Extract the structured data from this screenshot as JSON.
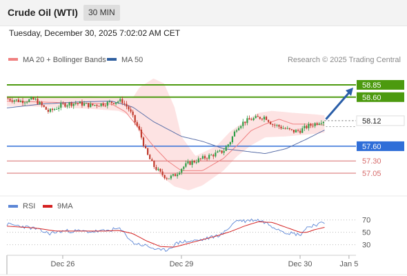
{
  "header": {
    "title": "Crude Oil (WTI)",
    "timeframe": "30 MIN",
    "timestamp": "Tuesday, December 30, 2025 7:02:02 AM CET"
  },
  "legend": {
    "items": [
      {
        "label": "MA 20 + Bollinger Bands",
        "color": "#f08080"
      },
      {
        "label": "MA 50",
        "color": "#2f5f9f"
      }
    ],
    "credit": "Research © 2025 Trading Central"
  },
  "colors": {
    "up": "#2e9e46",
    "down": "#c0392b",
    "band_fill": "#fde3e3",
    "ma20": "#f08080",
    "ma50": "#5a6fa8",
    "resistance": "#4c9a0f",
    "support_blue": "#2f6ed8",
    "support_red": "#d66a6a",
    "arrow": "#2a5ea8",
    "rsi": "#5b86d6",
    "rsi_ma": "#d42020"
  },
  "chart_data": [
    {
      "type": "candlestick",
      "y_axis_position": "right",
      "ylim": [
        56.6,
        59.3
      ],
      "x_range": [
        0,
        100
      ],
      "x_ticks": [
        {
          "x": 16,
          "label": "Dec 26"
        },
        {
          "x": 50,
          "label": "Dec 29"
        },
        {
          "x": 84,
          "label": "Dec 30"
        },
        {
          "x": 98,
          "label": "Jan 5"
        }
      ],
      "levels": [
        {
          "value": 58.85,
          "label": "58.85",
          "kind": "resistance"
        },
        {
          "value": 58.6,
          "label": "58.60",
          "kind": "resistance"
        },
        {
          "value": 57.6,
          "label": "57.60",
          "kind": "support_blue"
        },
        {
          "value": 57.3,
          "label": "57.30",
          "kind": "support_red"
        },
        {
          "value": 57.05,
          "label": "57.05",
          "kind": "support_red"
        }
      ],
      "last_price": {
        "value": 58.12,
        "label": "58.12"
      },
      "ma20_anchors": [
        [
          0,
          58.52
        ],
        [
          10,
          58.5
        ],
        [
          20,
          58.48
        ],
        [
          30,
          58.46
        ],
        [
          34,
          58.3
        ],
        [
          38,
          57.95
        ],
        [
          42,
          57.6
        ],
        [
          46,
          57.3
        ],
        [
          50,
          57.1
        ],
        [
          56,
          57.1
        ],
        [
          62,
          57.35
        ],
        [
          66,
          57.62
        ],
        [
          70,
          57.92
        ],
        [
          74,
          58.05
        ],
        [
          78,
          58.15
        ],
        [
          82,
          58.05
        ],
        [
          88,
          58.05
        ],
        [
          91,
          58.03
        ]
      ],
      "ma50_anchors": [
        [
          0,
          58.38
        ],
        [
          10,
          58.46
        ],
        [
          20,
          58.5
        ],
        [
          30,
          58.52
        ],
        [
          36,
          58.4
        ],
        [
          42,
          58.1
        ],
        [
          50,
          57.8
        ],
        [
          56,
          57.7
        ],
        [
          62,
          57.55
        ],
        [
          68,
          57.5
        ],
        [
          74,
          57.45
        ],
        [
          80,
          57.55
        ],
        [
          86,
          57.75
        ],
        [
          91,
          57.93
        ]
      ],
      "band_upper_anchors": [
        [
          0,
          58.62
        ],
        [
          12,
          58.6
        ],
        [
          24,
          58.62
        ],
        [
          32,
          58.6
        ],
        [
          36,
          58.58
        ],
        [
          38,
          58.8
        ],
        [
          42,
          58.98
        ],
        [
          45,
          58.88
        ],
        [
          48,
          58.4
        ],
        [
          50,
          57.8
        ],
        [
          54,
          57.4
        ],
        [
          60,
          57.6
        ],
        [
          64,
          57.9
        ],
        [
          68,
          58.1
        ],
        [
          72,
          58.28
        ],
        [
          76,
          58.32
        ],
        [
          82,
          58.28
        ],
        [
          88,
          58.25
        ],
        [
          91,
          58.23
        ]
      ],
      "band_lower_anchors": [
        [
          0,
          58.42
        ],
        [
          12,
          58.4
        ],
        [
          24,
          58.36
        ],
        [
          32,
          58.32
        ],
        [
          36,
          58.2
        ],
        [
          40,
          57.55
        ],
        [
          44,
          57.0
        ],
        [
          48,
          56.78
        ],
        [
          52,
          56.7
        ],
        [
          56,
          56.8
        ],
        [
          62,
          57.1
        ],
        [
          66,
          57.4
        ],
        [
          70,
          57.62
        ],
        [
          74,
          57.78
        ],
        [
          80,
          57.8
        ],
        [
          88,
          57.85
        ],
        [
          91,
          57.88
        ]
      ],
      "candle_anchors": [
        [
          0,
          58.57
        ],
        [
          4,
          58.52
        ],
        [
          8,
          58.55
        ],
        [
          12,
          58.3
        ],
        [
          16,
          58.45
        ],
        [
          20,
          58.48
        ],
        [
          24,
          58.43
        ],
        [
          28,
          58.47
        ],
        [
          32,
          58.52
        ],
        [
          33,
          58.52
        ],
        [
          35,
          58.35
        ],
        [
          38,
          57.9
        ],
        [
          40,
          57.45
        ],
        [
          42,
          57.2
        ],
        [
          44,
          57.05
        ],
        [
          46,
          56.95
        ],
        [
          48,
          57.0
        ],
        [
          50,
          57.15
        ],
        [
          52,
          57.25
        ],
        [
          54,
          57.3
        ],
        [
          58,
          57.4
        ],
        [
          62,
          57.5
        ],
        [
          64,
          57.7
        ],
        [
          66,
          58.0
        ],
        [
          68,
          58.1
        ],
        [
          70,
          58.15
        ],
        [
          72,
          58.18
        ],
        [
          74,
          58.2
        ],
        [
          76,
          58.05
        ],
        [
          78,
          58.0
        ],
        [
          80,
          57.95
        ],
        [
          82,
          57.9
        ],
        [
          84,
          57.92
        ],
        [
          86,
          58.0
        ],
        [
          88,
          58.05
        ],
        [
          90,
          58.12
        ],
        [
          91,
          58.12
        ]
      ]
    },
    {
      "type": "line",
      "name": "RSI",
      "ylim": [
        15,
        82
      ],
      "y_ticks": [
        70,
        50,
        30
      ],
      "legend": [
        {
          "label": "RSI",
          "color": "#5b86d6"
        },
        {
          "label": "9MA",
          "color": "#d42020"
        }
      ],
      "rsi_anchors": [
        [
          0,
          63
        ],
        [
          4,
          60
        ],
        [
          8,
          56
        ],
        [
          12,
          48
        ],
        [
          16,
          52
        ],
        [
          20,
          52
        ],
        [
          24,
          51
        ],
        [
          28,
          52
        ],
        [
          32,
          56
        ],
        [
          34,
          47
        ],
        [
          36,
          33
        ],
        [
          40,
          28
        ],
        [
          42,
          24
        ],
        [
          44,
          20
        ],
        [
          46,
          22
        ],
        [
          48,
          30
        ],
        [
          50,
          35
        ],
        [
          52,
          35
        ],
        [
          56,
          38
        ],
        [
          60,
          44
        ],
        [
          62,
          48
        ],
        [
          64,
          60
        ],
        [
          66,
          70
        ],
        [
          68,
          68
        ],
        [
          70,
          70
        ],
        [
          72,
          70
        ],
        [
          74,
          66
        ],
        [
          76,
          60
        ],
        [
          78,
          55
        ],
        [
          80,
          50
        ],
        [
          82,
          48
        ],
        [
          84,
          46
        ],
        [
          86,
          58
        ],
        [
          88,
          62
        ],
        [
          90,
          64
        ],
        [
          91,
          65
        ]
      ],
      "ma_anchors": [
        [
          0,
          60
        ],
        [
          8,
          57
        ],
        [
          14,
          52
        ],
        [
          20,
          52
        ],
        [
          28,
          52
        ],
        [
          32,
          53
        ],
        [
          36,
          48
        ],
        [
          40,
          36
        ],
        [
          44,
          27
        ],
        [
          48,
          26
        ],
        [
          52,
          32
        ],
        [
          56,
          38
        ],
        [
          60,
          44
        ],
        [
          64,
          51
        ],
        [
          68,
          60
        ],
        [
          72,
          67
        ],
        [
          76,
          66
        ],
        [
          80,
          58
        ],
        [
          84,
          50
        ],
        [
          86,
          50
        ],
        [
          88,
          54
        ],
        [
          91,
          58
        ]
      ]
    }
  ]
}
